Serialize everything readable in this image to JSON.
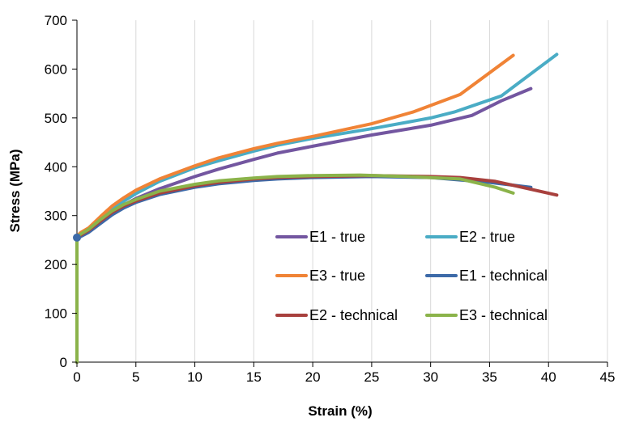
{
  "chart_data": {
    "type": "line",
    "title": "",
    "xlabel": "Strain (%)",
    "ylabel": "Stress (MPa)",
    "xlim": [
      0,
      45
    ],
    "ylim": [
      0,
      700
    ],
    "xticks": [
      0,
      5,
      10,
      15,
      20,
      25,
      30,
      35,
      40,
      45
    ],
    "yticks": [
      0,
      100,
      200,
      300,
      400,
      500,
      600,
      700
    ],
    "grid": "vertical",
    "legend_position": "inside-bottom-right",
    "series": [
      {
        "name": "E1 - true",
        "color": "#7356A0",
        "points": [
          [
            0,
            0
          ],
          [
            0,
            150
          ],
          [
            0,
            250
          ],
          [
            0.3,
            258
          ],
          [
            1,
            268
          ],
          [
            2,
            285
          ],
          [
            3,
            305
          ],
          [
            4,
            322
          ],
          [
            5,
            335
          ],
          [
            7,
            355
          ],
          [
            10,
            380
          ],
          [
            12,
            395
          ],
          [
            15,
            415
          ],
          [
            17,
            428
          ],
          [
            20,
            442
          ],
          [
            25,
            465
          ],
          [
            30,
            485
          ],
          [
            33.5,
            505
          ],
          [
            36,
            535
          ],
          [
            38.5,
            560
          ]
        ]
      },
      {
        "name": "E2 - true",
        "color": "#4AACC5",
        "points": [
          [
            0,
            0
          ],
          [
            0,
            150
          ],
          [
            0,
            255
          ],
          [
            0.3,
            262
          ],
          [
            1,
            272
          ],
          [
            2,
            292
          ],
          [
            3,
            312
          ],
          [
            4,
            330
          ],
          [
            5,
            345
          ],
          [
            7,
            370
          ],
          [
            10,
            398
          ],
          [
            12,
            412
          ],
          [
            15,
            432
          ],
          [
            17,
            444
          ],
          [
            20,
            458
          ],
          [
            25,
            478
          ],
          [
            30,
            500
          ],
          [
            32,
            512
          ],
          [
            36,
            545
          ],
          [
            40.7,
            630
          ]
        ]
      },
      {
        "name": "E3 - true",
        "color": "#F08336",
        "points": [
          [
            0,
            0
          ],
          [
            0,
            150
          ],
          [
            0,
            258
          ],
          [
            0.3,
            265
          ],
          [
            1,
            275
          ],
          [
            2,
            298
          ],
          [
            3,
            320
          ],
          [
            4,
            337
          ],
          [
            5,
            352
          ],
          [
            7,
            375
          ],
          [
            10,
            402
          ],
          [
            12,
            418
          ],
          [
            15,
            437
          ],
          [
            17,
            448
          ],
          [
            20,
            462
          ],
          [
            25,
            488
          ],
          [
            28.5,
            512
          ],
          [
            32.5,
            548
          ],
          [
            37,
            628
          ]
        ]
      },
      {
        "name": "E1 - technical",
        "color": "#3D6AA8",
        "points": [
          [
            0,
            0
          ],
          [
            0,
            150
          ],
          [
            0,
            250
          ],
          [
            0.3,
            257
          ],
          [
            1,
            266
          ],
          [
            2,
            284
          ],
          [
            3,
            302
          ],
          [
            4,
            316
          ],
          [
            5,
            327
          ],
          [
            7,
            343
          ],
          [
            10,
            358
          ],
          [
            12,
            365
          ],
          [
            15,
            372
          ],
          [
            17,
            375
          ],
          [
            20,
            378
          ],
          [
            25,
            380
          ],
          [
            30,
            378
          ],
          [
            35,
            368
          ],
          [
            38.5,
            358
          ]
        ]
      },
      {
        "name": "E2 - technical",
        "color": "#A8403D",
        "points": [
          [
            0,
            0
          ],
          [
            0,
            150
          ],
          [
            0,
            253
          ],
          [
            0.3,
            260
          ],
          [
            1,
            270
          ],
          [
            2,
            289
          ],
          [
            3,
            307
          ],
          [
            4,
            320
          ],
          [
            5,
            330
          ],
          [
            7,
            346
          ],
          [
            10,
            361
          ],
          [
            12,
            368
          ],
          [
            15,
            375
          ],
          [
            17,
            378
          ],
          [
            20,
            380
          ],
          [
            25,
            382
          ],
          [
            30,
            380
          ],
          [
            32.5,
            378
          ],
          [
            35.5,
            370
          ],
          [
            40.7,
            342
          ]
        ]
      },
      {
        "name": "E3 - technical",
        "color": "#8BB34A",
        "points": [
          [
            0,
            0
          ],
          [
            0,
            150
          ],
          [
            0,
            255
          ],
          [
            0.3,
            262
          ],
          [
            1,
            272
          ],
          [
            2,
            292
          ],
          [
            3,
            310
          ],
          [
            4,
            323
          ],
          [
            5,
            333
          ],
          [
            7,
            350
          ],
          [
            10,
            364
          ],
          [
            12,
            371
          ],
          [
            15,
            377
          ],
          [
            17,
            380
          ],
          [
            20,
            382
          ],
          [
            24,
            383
          ],
          [
            28,
            380
          ],
          [
            32.5,
            375
          ],
          [
            35.5,
            358
          ],
          [
            37,
            346
          ]
        ]
      }
    ]
  }
}
